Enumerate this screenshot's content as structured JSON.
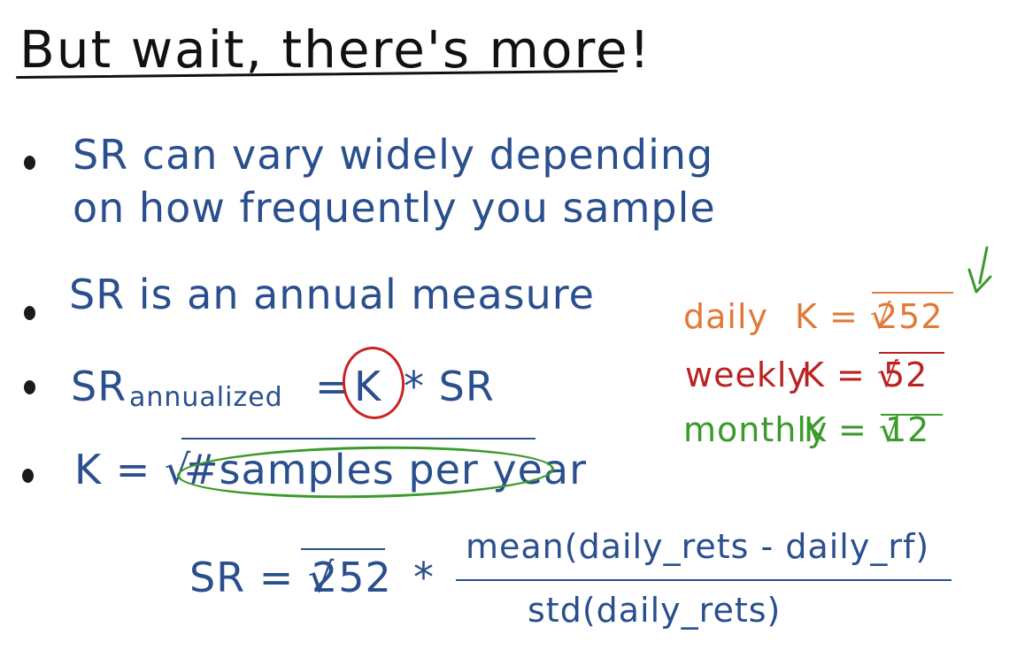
{
  "title": "But wait, there's more!",
  "bullets": [
    {
      "line1": "SR can vary widely depending",
      "line2": "on how frequently you sample"
    },
    {
      "text": "SR is an annual measure"
    },
    {
      "main": "SR",
      "subscript": "annualized",
      "equals": "=",
      "k": "K",
      "rest": "* SR"
    },
    {
      "lhs": "K = √",
      "radicand": "#samples per year"
    }
  ],
  "frequencies": [
    {
      "label": "daily",
      "k": "K = √",
      "value": "252",
      "color": "#e07a3a"
    },
    {
      "label": "weekly",
      "k": "K = √",
      "value": "52",
      "color": "#bb2222"
    },
    {
      "label": "monthly",
      "k": "K = √",
      "value": "12",
      "color": "#3a9a2a"
    }
  ],
  "formula": {
    "lhs": "SR = √",
    "radicand": "252",
    "times": "*",
    "numerator": "mean(daily_rets - daily_rf)",
    "denominator": "std(daily_rets)"
  }
}
